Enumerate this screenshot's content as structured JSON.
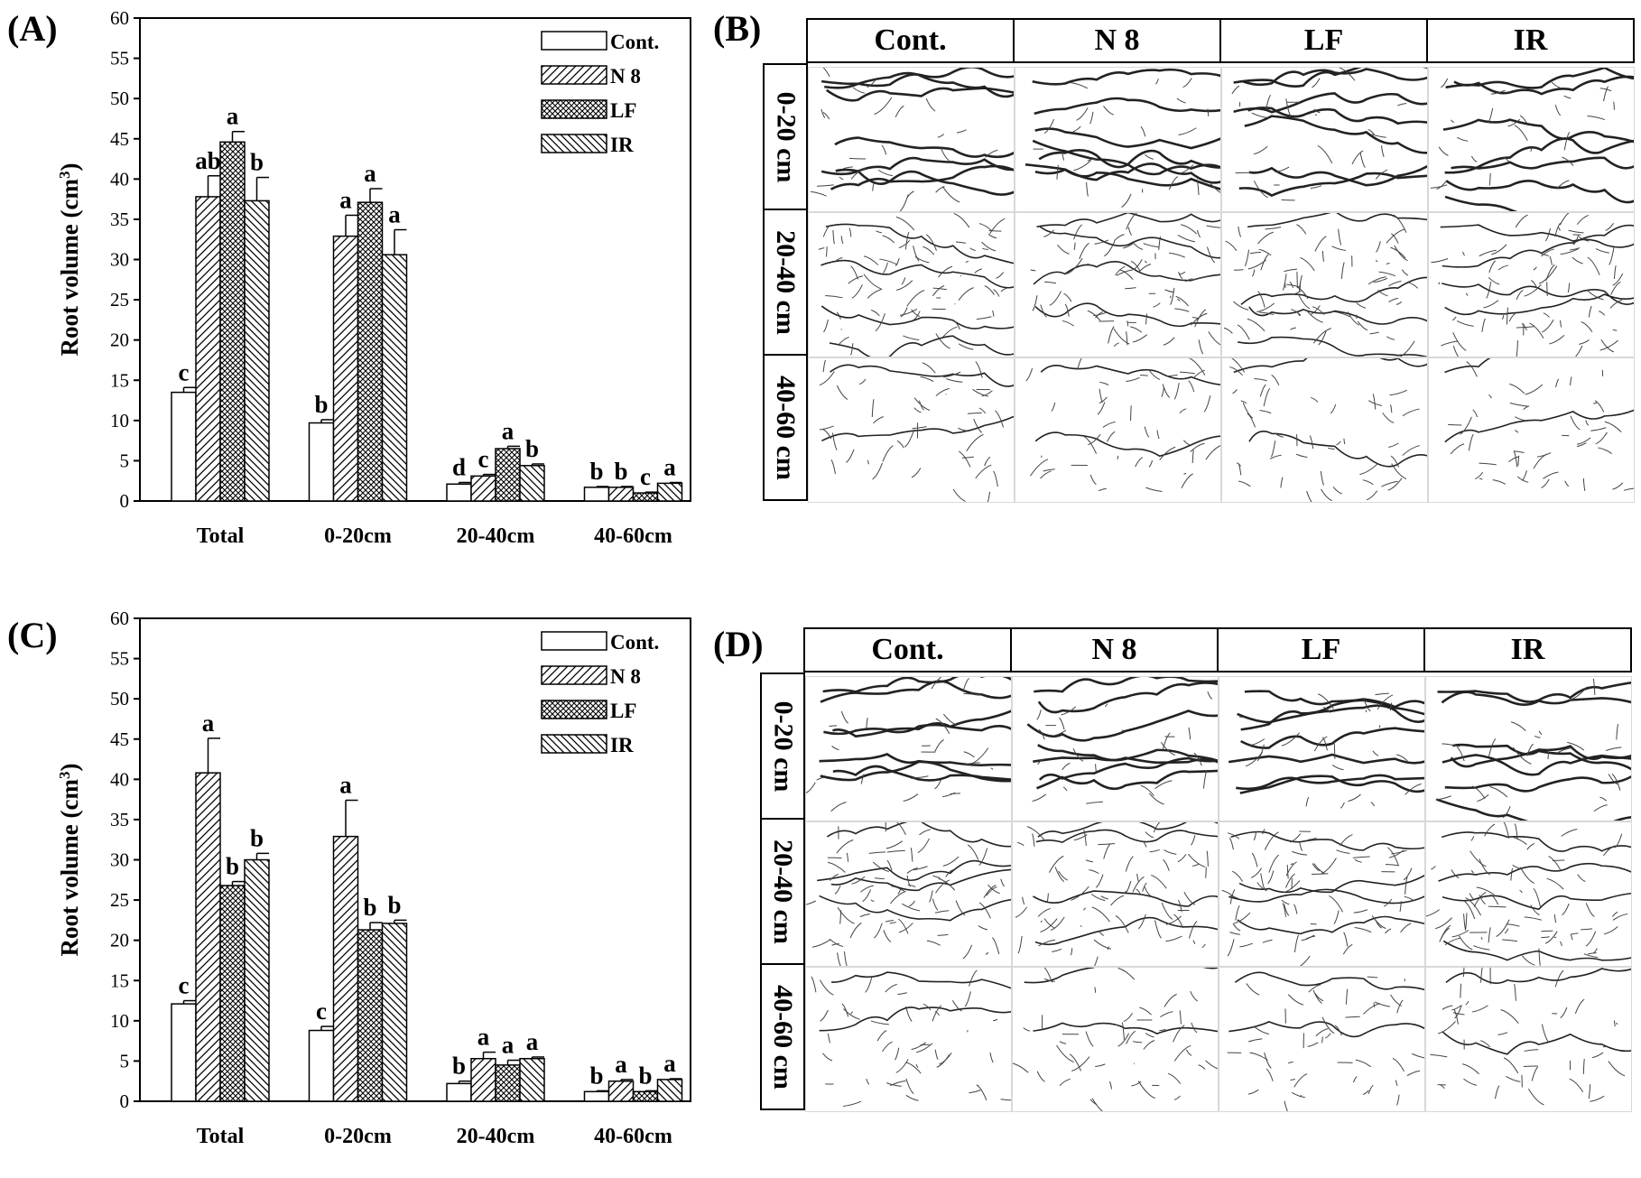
{
  "panels": {
    "a": "(A)",
    "b": "(B)",
    "c": "(C)",
    "d": "(D)"
  },
  "chart_data": [
    {
      "type": "bar",
      "panel": "(A)",
      "ylabel": "Root volume (cm³)",
      "ylabel_main": "Root volume (cm",
      "ylabel_sup": "3",
      "ylabel_end": ")",
      "ylim": [
        0,
        60
      ],
      "yticks": [
        0,
        5,
        10,
        15,
        20,
        25,
        30,
        35,
        40,
        45,
        50,
        55,
        60
      ],
      "categories": [
        "Total",
        "0-20cm",
        "20-40cm",
        "40-60cm"
      ],
      "legend_position": "top-right",
      "series": [
        {
          "name": "Cont.",
          "pattern": "none",
          "values": [
            13.5,
            9.7,
            2.1,
            1.7
          ],
          "errors": [
            0.6,
            0.4,
            0.2,
            0.1
          ],
          "letters": [
            "c",
            "b",
            "d",
            "b"
          ]
        },
        {
          "name": "N 8",
          "pattern": "diag",
          "values": [
            37.8,
            32.9,
            3.1,
            1.7
          ],
          "errors": [
            2.6,
            2.6,
            0.2,
            0.1
          ],
          "letters": [
            "ab",
            "a",
            "c",
            "b"
          ]
        },
        {
          "name": "LF",
          "pattern": "crosshatch",
          "values": [
            44.6,
            37.1,
            6.5,
            1.0
          ],
          "errors": [
            1.3,
            1.7,
            0.3,
            0.1
          ],
          "letters": [
            "a",
            "a",
            "a",
            "c"
          ]
        },
        {
          "name": "IR",
          "pattern": "backdiag",
          "values": [
            37.3,
            30.6,
            4.4,
            2.2
          ],
          "errors": [
            2.9,
            3.1,
            0.2,
            0.1
          ],
          "letters": [
            "b",
            "a",
            "b",
            "a"
          ]
        }
      ]
    },
    {
      "type": "bar",
      "panel": "(C)",
      "ylabel": "Root volume (cm³)",
      "ylabel_main": "Root volume (cm",
      "ylabel_sup": "3",
      "ylabel_end": ")",
      "ylim": [
        0,
        60
      ],
      "yticks": [
        0,
        5,
        10,
        15,
        20,
        25,
        30,
        35,
        40,
        45,
        50,
        55,
        60
      ],
      "categories": [
        "Total",
        "0-20cm",
        "20-40cm",
        "40-60cm"
      ],
      "legend_position": "top-right",
      "series": [
        {
          "name": "Cont.",
          "pattern": "none",
          "values": [
            12.1,
            8.8,
            2.2,
            1.2
          ],
          "errors": [
            0.4,
            0.5,
            0.3,
            0.1
          ],
          "letters": [
            "c",
            "c",
            "b",
            "b"
          ]
        },
        {
          "name": "N 8",
          "pattern": "diag",
          "values": [
            40.8,
            32.9,
            5.3,
            2.5
          ],
          "errors": [
            4.3,
            4.5,
            0.8,
            0.2
          ],
          "letters": [
            "a",
            "a",
            "a",
            "a"
          ]
        },
        {
          "name": "LF",
          "pattern": "crosshatch",
          "values": [
            26.8,
            21.3,
            4.5,
            1.2
          ],
          "errors": [
            0.5,
            0.9,
            0.6,
            0.1
          ],
          "letters": [
            "b",
            "b",
            "a",
            "b"
          ]
        },
        {
          "name": "IR",
          "pattern": "backdiag",
          "values": [
            30.0,
            22.1,
            5.3,
            2.7
          ],
          "errors": [
            0.8,
            0.4,
            0.2,
            0.1
          ],
          "letters": [
            "b",
            "b",
            "a",
            "a"
          ]
        }
      ]
    }
  ],
  "image_grids": [
    {
      "panel": "(B)",
      "columns": [
        "Cont.",
        "N 8",
        "LF",
        "IR"
      ],
      "rows": [
        "0-20 cm",
        "20-40 cm",
        "40-60 cm"
      ]
    },
    {
      "panel": "(D)",
      "columns": [
        "Cont.",
        "N 8",
        "LF",
        "IR"
      ],
      "rows": [
        "0-20 cm",
        "20-40 cm",
        "40-60 cm"
      ]
    }
  ]
}
